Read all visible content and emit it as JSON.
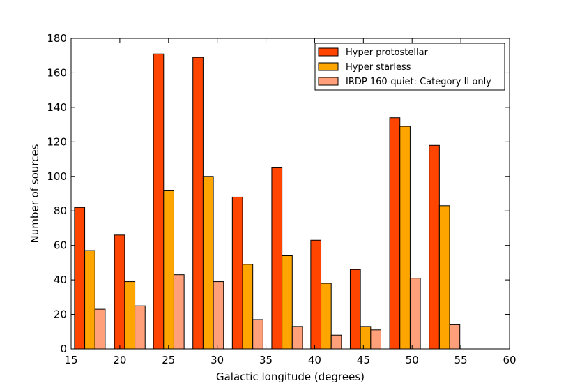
{
  "chart_data": {
    "type": "bar",
    "title": "",
    "xlabel": "Galactic longitude (degrees)",
    "ylabel": "Number of sources",
    "xlim": [
      15,
      60
    ],
    "ylim": [
      0,
      180
    ],
    "xticks": [
      15,
      20,
      25,
      30,
      35,
      40,
      45,
      50,
      55,
      60
    ],
    "yticks": [
      0,
      20,
      40,
      60,
      80,
      100,
      120,
      140,
      160,
      180
    ],
    "bin_starts": [
      15.35,
      19.45,
      23.45,
      27.5,
      31.55,
      35.6,
      39.6,
      43.65,
      47.7,
      51.75
    ],
    "bin_width": 1.05,
    "grid": false,
    "legend_position": "top-right",
    "series": [
      {
        "name": "Hyper protostellar",
        "color": "#ff4500",
        "values": [
          82,
          66,
          171,
          169,
          88,
          105,
          63,
          46,
          134,
          118
        ]
      },
      {
        "name": "Hyper starless",
        "color": "#ffa500",
        "values": [
          57,
          39,
          92,
          100,
          49,
          54,
          38,
          13,
          129,
          83
        ]
      },
      {
        "name": "IRDP 160-quiet: Category II only",
        "color": "#ffa07a",
        "values": [
          23,
          25,
          43,
          39,
          17,
          13,
          8,
          11,
          41,
          14
        ]
      }
    ]
  }
}
